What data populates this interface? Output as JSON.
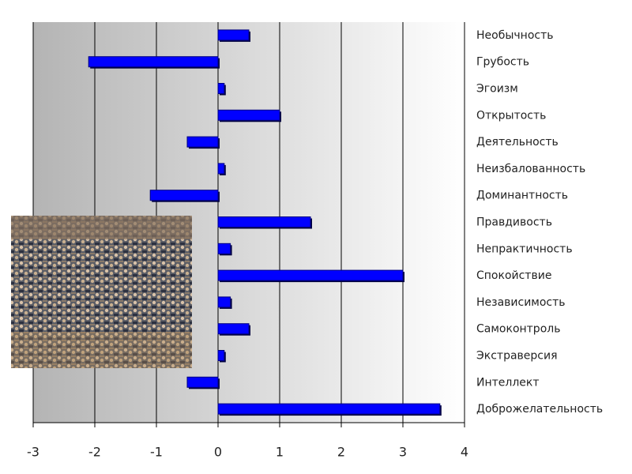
{
  "chart_data": {
    "type": "barh",
    "categories": [
      "Необычность",
      "Грубость",
      "Эгоизм",
      "Открытость",
      "Деятельность",
      "Неизбалованность",
      "Доминантность",
      "Правдивость",
      "Непрактичность",
      "Спокойствие",
      "Независимость",
      "Самоконтроль",
      "Экстраверсия",
      "Интеллект",
      "Доброжелательность"
    ],
    "values": [
      0.5,
      -2.1,
      0.1,
      1.0,
      -0.5,
      0.1,
      -1.1,
      1.5,
      0.2,
      3.0,
      0.2,
      0.5,
      0.1,
      -0.5,
      3.6
    ],
    "color": "#0000ff",
    "xlim": [
      -3,
      4
    ],
    "xticks": [
      -3,
      -2,
      -1,
      0,
      1,
      2,
      3,
      4
    ],
    "grid": true
  }
}
